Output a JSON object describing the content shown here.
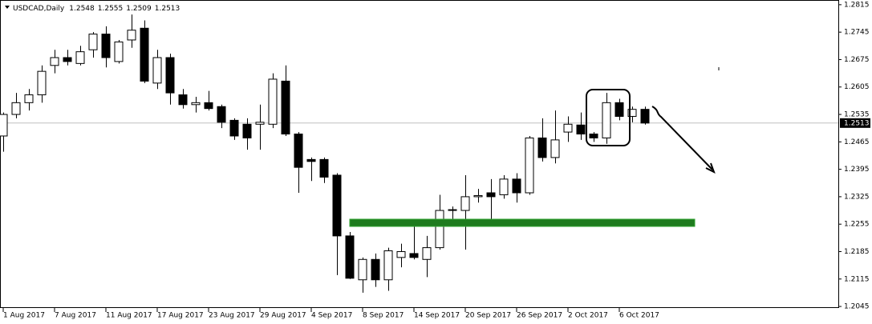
{
  "header": {
    "symbol": "USDCAD,Daily",
    "ohlc": [
      1.2548,
      1.2555,
      1.2509,
      1.2513
    ]
  },
  "chart_data": {
    "type": "candlestick",
    "categories": [
      "1 Aug 2017",
      null,
      null,
      null,
      "7 Aug 2017",
      null,
      null,
      null,
      "11 Aug 2017",
      null,
      null,
      null,
      "17 Aug 2017",
      null,
      null,
      null,
      "23 Aug 2017",
      null,
      null,
      null,
      "29 Aug 2017",
      null,
      null,
      null,
      "4 Sep 2017",
      null,
      null,
      null,
      "8 Sep 2017",
      null,
      null,
      null,
      "14 Sep 2017",
      null,
      null,
      null,
      "20 Sep 2017",
      null,
      null,
      null,
      "26 Sep 2017",
      null,
      null,
      null,
      "2 Oct 2017",
      null,
      null,
      null,
      "6 Oct 2017",
      null,
      null
    ],
    "open": [
      1.248,
      1.2535,
      1.2565,
      1.2585,
      1.266,
      1.268,
      1.2665,
      1.27,
      1.274,
      1.267,
      1.2725,
      1.2755,
      1.2615,
      1.268,
      1.2585,
      1.256,
      1.2565,
      1.2555,
      1.252,
      1.251,
      1.251,
      1.251,
      1.262,
      1.2485,
      1.242,
      1.242,
      1.238,
      1.2225,
      1.2113,
      1.2165,
      1.2113,
      1.217,
      1.218,
      1.2165,
      1.2195,
      1.229,
      1.229,
      1.2325,
      1.2335,
      1.233,
      1.237,
      1.2335,
      1.2475,
      1.2425,
      1.249,
      1.2508,
      1.2485,
      1.2475,
      1.2565,
      1.253,
      1.2548
    ],
    "high": [
      1.254,
      1.259,
      1.26,
      1.266,
      1.27,
      1.27,
      1.271,
      1.2745,
      1.276,
      1.2725,
      1.279,
      1.2775,
      1.27,
      1.269,
      1.26,
      1.258,
      1.2595,
      1.256,
      1.2525,
      1.2525,
      1.256,
      1.264,
      1.266,
      1.249,
      1.2425,
      1.2425,
      1.2385,
      1.2235,
      1.217,
      1.218,
      1.2195,
      1.2205,
      1.225,
      1.2225,
      1.233,
      1.23,
      1.238,
      1.2345,
      1.237,
      1.238,
      1.2385,
      1.248,
      1.2525,
      1.2545,
      1.253,
      1.254,
      1.249,
      1.259,
      1.2575,
      1.2555,
      1.2555
    ],
    "low": [
      1.244,
      1.2525,
      1.2545,
      1.2565,
      1.264,
      1.266,
      1.266,
      1.268,
      1.2655,
      1.2665,
      1.2705,
      1.2615,
      1.26,
      1.256,
      1.255,
      1.254,
      1.2545,
      1.25,
      1.247,
      1.2445,
      1.2445,
      1.25,
      1.248,
      1.2335,
      1.2365,
      1.236,
      1.2125,
      1.2115,
      1.208,
      1.2095,
      1.2085,
      1.2145,
      1.2165,
      1.212,
      1.219,
      1.225,
      1.219,
      1.231,
      1.2255,
      1.232,
      1.231,
      1.233,
      1.2415,
      1.241,
      1.2465,
      1.247,
      1.2465,
      1.246,
      1.252,
      1.2515,
      1.2509
    ],
    "close": [
      1.2535,
      1.2565,
      1.2585,
      1.2645,
      1.268,
      1.267,
      1.2695,
      1.274,
      1.268,
      1.272,
      1.275,
      1.262,
      1.268,
      1.259,
      1.256,
      1.2565,
      1.255,
      1.2515,
      1.248,
      1.2475,
      1.2515,
      1.2625,
      1.2485,
      1.24,
      1.2415,
      1.2375,
      1.2225,
      1.2117,
      1.2165,
      1.2113,
      1.2187,
      1.2185,
      1.217,
      1.2195,
      1.229,
      1.2292,
      1.2325,
      1.2328,
      1.2325,
      1.237,
      1.2335,
      1.2475,
      1.2425,
      1.247,
      1.251,
      1.2485,
      1.2475,
      1.2565,
      1.253,
      1.2548,
      1.2513
    ],
    "ylim": [
      1.2039,
      1.2827
    ],
    "yticks": [
      1.2045,
      1.2115,
      1.2185,
      1.2255,
      1.2325,
      1.2395,
      1.2465,
      1.2535,
      1.2605,
      1.2675,
      1.2745,
      1.2815
    ],
    "up_color": "#ffffff",
    "down_color": "#000000",
    "line_color": "#000000"
  }
}
